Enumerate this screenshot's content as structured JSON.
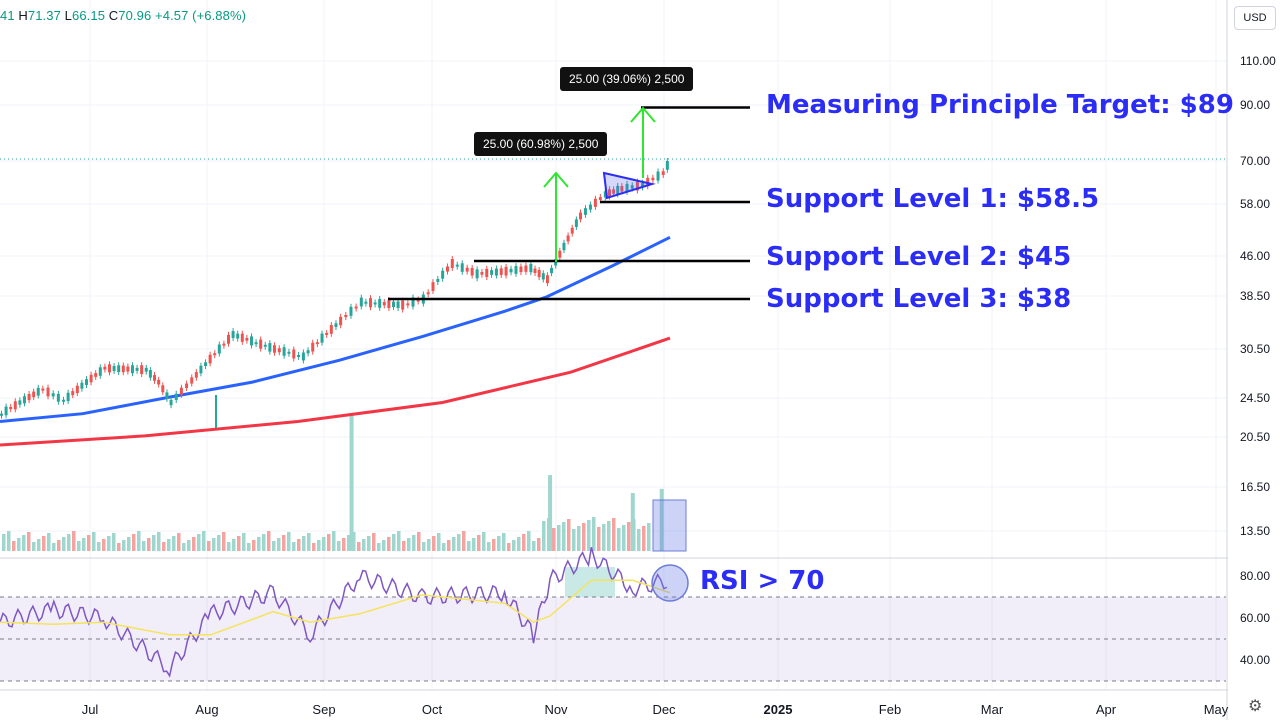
{
  "ohlc_header": {
    "open_fragment": "41",
    "h_key": "H",
    "h": "71.37",
    "l_key": "L",
    "l": "66.15",
    "c_key": "C",
    "c": "70.96",
    "change": "+4.57 (+6.88%)"
  },
  "currency": "USD",
  "settings_icon": "gear-icon",
  "colors": {
    "up": "#26a69a",
    "down": "#ef5350",
    "ma_short": "#2962ff",
    "ma_long": "#f23645",
    "annotation": "#2b2cf5",
    "arrow": "#2ee62e",
    "rsi": "#7e57c2",
    "rsi_ma": "#f5e35a"
  },
  "annotations": {
    "target": "Measuring Principle Target: $89",
    "support1": "Support Level 1: $58.5",
    "support2": "Support Level 2: $45",
    "support3": "Support Level 3: $38",
    "rsi": "RSI > 70"
  },
  "measure_labels": [
    "25.00 (60.98%) 2,500",
    "25.00 (39.06%) 2,500"
  ],
  "chart_data": {
    "type": "line",
    "scale": "log",
    "y_ticks": [
      "110.00",
      "90.00",
      "70.00",
      "58.00",
      "46.00",
      "38.50",
      "30.50",
      "24.50",
      "20.50",
      "16.50",
      "13.50"
    ],
    "x_ticks": [
      "Jul",
      "Aug",
      "Sep",
      "Oct",
      "Nov",
      "Dec",
      "2025",
      "Feb",
      "Mar",
      "Apr",
      "May"
    ],
    "rsi_ticks": [
      "80.00",
      "60.00",
      "40.00"
    ],
    "rsi_levels": [
      70,
      50,
      30
    ],
    "price_series": {
      "dates": [
        "2024-06-25",
        "2024-07-05",
        "2024-07-10",
        "2024-07-20",
        "2024-07-30",
        "2024-08-02",
        "2024-08-05",
        "2024-08-10",
        "2024-08-20",
        "2024-08-30",
        "2024-09-06",
        "2024-09-15",
        "2024-09-20",
        "2024-09-30",
        "2024-10-05",
        "2024-10-12",
        "2024-10-18",
        "2024-10-25",
        "2024-10-31",
        "2024-11-04",
        "2024-11-08",
        "2024-11-12",
        "2024-11-18",
        "2024-11-22",
        "2024-11-27",
        "2024-12-02",
        "2024-12-04"
      ],
      "close": [
        22.8,
        25.5,
        24.2,
        28.0,
        27.8,
        26.3,
        24.0,
        26.5,
        32.5,
        30.5,
        29.5,
        34.5,
        37.5,
        37.0,
        38.0,
        44.5,
        42.5,
        43.0,
        43.6,
        41.5,
        48.0,
        55.0,
        60.5,
        62.0,
        63.0,
        66.4,
        70.96
      ]
    },
    "ma_short": {
      "dates": [
        "2024-06-25",
        "2024-07-15",
        "2024-08-05",
        "2024-08-25",
        "2024-09-15",
        "2024-10-05",
        "2024-10-25",
        "2024-11-04",
        "2024-11-20",
        "2024-12-04"
      ],
      "values": [
        22.0,
        22.8,
        24.6,
        26.3,
        29.0,
        32.2,
        36.0,
        38.3,
        44.0,
        50.0
      ]
    },
    "ma_long": {
      "dates": [
        "2024-06-25",
        "2024-07-30",
        "2024-09-05",
        "2024-10-10",
        "2024-11-10",
        "2024-12-04"
      ],
      "values": [
        19.8,
        20.6,
        22.0,
        24.0,
        27.5,
        32.0
      ]
    },
    "volume": {
      "dates": [
        "2024-09-18",
        "2024-11-05",
        "2024-11-25",
        "2024-12-02"
      ],
      "values_relative": [
        1.0,
        0.55,
        0.42,
        0.45
      ]
    },
    "rsi": {
      "dates": [
        "2024-06-25",
        "2024-07-08",
        "2024-07-20",
        "2024-08-05",
        "2024-08-15",
        "2024-08-30",
        "2024-09-08",
        "2024-09-20",
        "2024-10-05",
        "2024-10-25",
        "2024-11-01",
        "2024-11-05",
        "2024-11-15",
        "2024-11-25",
        "2024-12-04"
      ],
      "values": [
        58,
        64,
        60,
        36,
        62,
        72,
        52,
        80,
        70,
        72,
        52,
        78,
        90,
        74,
        78
      ]
    },
    "support_levels": [
      58.5,
      45,
      38
    ],
    "target": 89
  }
}
